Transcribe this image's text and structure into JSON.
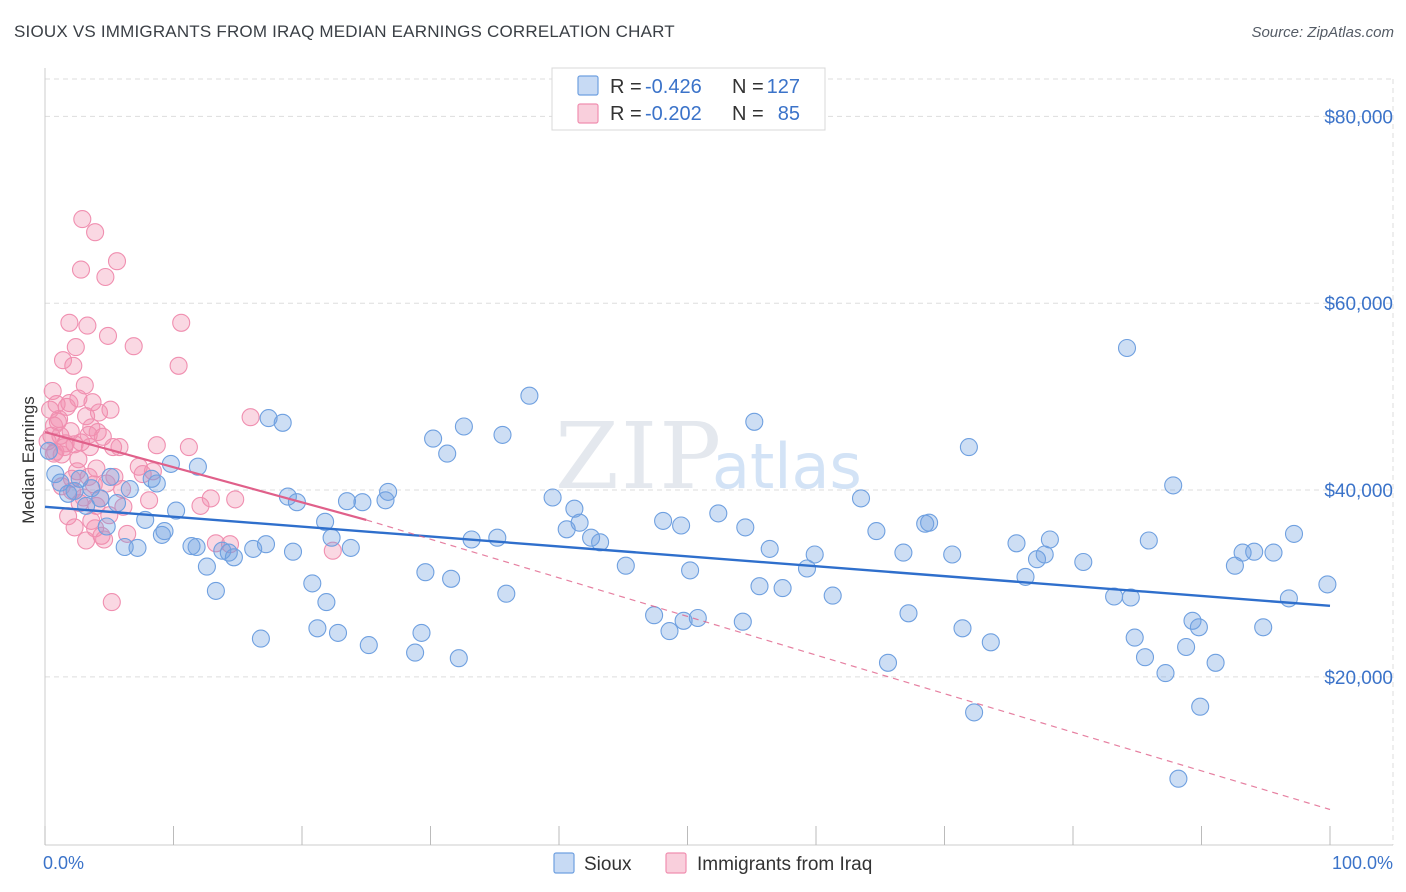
{
  "title": "SIOUX VS IMMIGRANTS FROM IRAQ MEDIAN EARNINGS CORRELATION CHART",
  "source": "Source: ZipAtlas.com",
  "watermark": {
    "part1": "ZIP",
    "part2": "atlas"
  },
  "colors": {
    "sioux": "#6fa0e0",
    "sioux_line": "#2f6fcc",
    "iraq": "#f08fb0",
    "iraq_line": "#e0608a",
    "axis_text": "#3b73c9",
    "grid": "#dddddd"
  },
  "legend": {
    "rows": [
      {
        "r_label": "R =",
        "r_value": "-0.426",
        "n_label": "N =",
        "n_value": "127"
      },
      {
        "r_label": "R =",
        "r_value": "-0.202",
        "n_label": "N =",
        "n_value": "85"
      }
    ]
  },
  "bottom_legend": [
    "Sioux",
    "Immigrants from Iraq"
  ],
  "chart_data": {
    "type": "scatter",
    "title": "SIOUX VS IMMIGRANTS FROM IRAQ MEDIAN EARNINGS CORRELATION CHART",
    "xlabel": "",
    "ylabel": "Median Earnings",
    "xlim": [
      0,
      100
    ],
    "ylim": [
      2000,
      84000
    ],
    "x_tick_labels": [
      "0.0%",
      "100.0%"
    ],
    "y_ticks": [
      20000,
      40000,
      60000,
      80000
    ],
    "y_tick_labels": [
      "$20,000",
      "$40,000",
      "$60,000",
      "$80,000"
    ],
    "series": [
      {
        "name": "Sioux",
        "r": -0.426,
        "n": 127,
        "trend": {
          "x": [
            0,
            100
          ],
          "y": [
            38200,
            27600
          ]
        },
        "points": [
          [
            0.3,
            44200
          ],
          [
            1.2,
            40800
          ],
          [
            1.8,
            39600
          ],
          [
            2.3,
            39900
          ],
          [
            2.7,
            41200
          ],
          [
            3.2,
            38300
          ],
          [
            3.6,
            40200
          ],
          [
            4.3,
            39100
          ],
          [
            4.8,
            36100
          ],
          [
            5.1,
            41400
          ],
          [
            5.6,
            38600
          ],
          [
            6.2,
            33900
          ],
          [
            6.6,
            40100
          ],
          [
            7.2,
            33800
          ],
          [
            7.8,
            36800
          ],
          [
            8.3,
            41200
          ],
          [
            8.7,
            40700
          ],
          [
            9.1,
            35200
          ],
          [
            9.3,
            35600
          ],
          [
            9.8,
            42800
          ],
          [
            10.2,
            37800
          ],
          [
            11.4,
            34000
          ],
          [
            11.8,
            33900
          ],
          [
            11.9,
            42500
          ],
          [
            12.6,
            31800
          ],
          [
            13.3,
            29200
          ],
          [
            13.8,
            33500
          ],
          [
            14.3,
            33300
          ],
          [
            14.7,
            32800
          ],
          [
            16.2,
            33700
          ],
          [
            16.8,
            24100
          ],
          [
            17.2,
            34200
          ],
          [
            17.4,
            47700
          ],
          [
            18.5,
            47200
          ],
          [
            18.9,
            39300
          ],
          [
            19.3,
            33400
          ],
          [
            19.6,
            38700
          ],
          [
            20.8,
            30000
          ],
          [
            21.2,
            25200
          ],
          [
            21.9,
            28000
          ],
          [
            21.8,
            36600
          ],
          [
            22.3,
            34900
          ],
          [
            22.8,
            24700
          ],
          [
            23.5,
            38800
          ],
          [
            23.8,
            33800
          ],
          [
            24.7,
            38700
          ],
          [
            25.2,
            23400
          ],
          [
            26.5,
            38900
          ],
          [
            26.7,
            39800
          ],
          [
            28.8,
            22600
          ],
          [
            29.3,
            24700
          ],
          [
            29.6,
            31200
          ],
          [
            30.2,
            45500
          ],
          [
            31.3,
            43900
          ],
          [
            31.6,
            30500
          ],
          [
            32.2,
            22000
          ],
          [
            32.6,
            46800
          ],
          [
            33.2,
            34700
          ],
          [
            35.2,
            34900
          ],
          [
            35.6,
            45900
          ],
          [
            35.9,
            28900
          ],
          [
            37.7,
            50100
          ],
          [
            39.5,
            39200
          ],
          [
            40.6,
            35800
          ],
          [
            41.2,
            38000
          ],
          [
            41.6,
            36500
          ],
          [
            42.5,
            34900
          ],
          [
            43.2,
            34400
          ],
          [
            45.2,
            31900
          ],
          [
            47.4,
            26600
          ],
          [
            48.1,
            36700
          ],
          [
            48.6,
            24900
          ],
          [
            49.5,
            36200
          ],
          [
            49.7,
            26000
          ],
          [
            50.8,
            26300
          ],
          [
            50.2,
            31400
          ],
          [
            52.4,
            37500
          ],
          [
            54.5,
            36000
          ],
          [
            54.3,
            25900
          ],
          [
            55.2,
            47300
          ],
          [
            55.6,
            29700
          ],
          [
            56.4,
            33700
          ],
          [
            57.4,
            29500
          ],
          [
            59.3,
            31600
          ],
          [
            59.9,
            33100
          ],
          [
            61.3,
            28700
          ],
          [
            63.5,
            39100
          ],
          [
            64.7,
            35600
          ],
          [
            65.6,
            21500
          ],
          [
            66.8,
            33300
          ],
          [
            67.2,
            26800
          ],
          [
            68.5,
            36400
          ],
          [
            68.8,
            36500
          ],
          [
            70.6,
            33100
          ],
          [
            71.4,
            25200
          ],
          [
            71.9,
            44600
          ],
          [
            72.3,
            16200
          ],
          [
            73.6,
            23700
          ],
          [
            75.6,
            34300
          ],
          [
            76.3,
            30700
          ],
          [
            77.2,
            32600
          ],
          [
            77.8,
            33100
          ],
          [
            78.2,
            34700
          ],
          [
            80.8,
            32300
          ],
          [
            83.2,
            28600
          ],
          [
            84.2,
            55200
          ],
          [
            84.5,
            28500
          ],
          [
            84.8,
            24200
          ],
          [
            85.6,
            22100
          ],
          [
            85.9,
            34600
          ],
          [
            87.2,
            20400
          ],
          [
            87.8,
            40500
          ],
          [
            88.2,
            9100
          ],
          [
            88.8,
            23200
          ],
          [
            89.3,
            26000
          ],
          [
            89.8,
            25300
          ],
          [
            89.9,
            16800
          ],
          [
            91.1,
            21500
          ],
          [
            92.6,
            31900
          ],
          [
            93.2,
            33300
          ],
          [
            94.1,
            33400
          ],
          [
            94.8,
            25300
          ],
          [
            95.6,
            33300
          ],
          [
            96.8,
            28400
          ],
          [
            97.2,
            35300
          ],
          [
            99.8,
            29900
          ],
          [
            0.8,
            41700
          ]
        ]
      },
      {
        "name": "Immigrants from Iraq",
        "r": -0.202,
        "n": 85,
        "trend_solid": {
          "x": [
            0,
            25
          ],
          "y": [
            46200,
            36800
          ]
        },
        "trend_dashed": {
          "x": [
            25,
            100
          ],
          "y": [
            36800,
            5800
          ]
        },
        "points": [
          [
            0.2,
            45200
          ],
          [
            0.4,
            48600
          ],
          [
            0.6,
            50600
          ],
          [
            0.7,
            46900
          ],
          [
            0.8,
            44100
          ],
          [
            0.9,
            49200
          ],
          [
            1.1,
            47600
          ],
          [
            1.2,
            45800
          ],
          [
            1.3,
            43800
          ],
          [
            1.4,
            53900
          ],
          [
            1.6,
            45000
          ],
          [
            1.7,
            48900
          ],
          [
            1.8,
            37200
          ],
          [
            1.9,
            57900
          ],
          [
            2.0,
            46300
          ],
          [
            2.1,
            39900
          ],
          [
            2.2,
            53300
          ],
          [
            2.3,
            44900
          ],
          [
            2.4,
            55300
          ],
          [
            2.5,
            42000
          ],
          [
            2.6,
            49800
          ],
          [
            2.7,
            38600
          ],
          [
            2.8,
            63600
          ],
          [
            2.9,
            69000
          ],
          [
            3.0,
            39200
          ],
          [
            3.1,
            51200
          ],
          [
            3.2,
            47900
          ],
          [
            3.3,
            57600
          ],
          [
            3.4,
            45900
          ],
          [
            3.5,
            44600
          ],
          [
            3.6,
            36700
          ],
          [
            3.7,
            49400
          ],
          [
            3.8,
            40600
          ],
          [
            3.9,
            67600
          ],
          [
            4.0,
            42300
          ],
          [
            4.1,
            46200
          ],
          [
            4.2,
            48300
          ],
          [
            4.3,
            39100
          ],
          [
            4.4,
            35100
          ],
          [
            4.5,
            45700
          ],
          [
            4.6,
            34700
          ],
          [
            4.7,
            62800
          ],
          [
            4.8,
            40700
          ],
          [
            4.9,
            56500
          ],
          [
            5.0,
            37300
          ],
          [
            5.1,
            48600
          ],
          [
            5.2,
            28000
          ],
          [
            5.3,
            44600
          ],
          [
            5.4,
            41400
          ],
          [
            5.6,
            64500
          ],
          [
            5.8,
            44600
          ],
          [
            6.1,
            38200
          ],
          [
            6.4,
            35300
          ],
          [
            6.9,
            55400
          ],
          [
            7.3,
            42500
          ],
          [
            7.6,
            41700
          ],
          [
            8.1,
            38900
          ],
          [
            8.4,
            42000
          ],
          [
            8.7,
            44800
          ],
          [
            10.4,
            53300
          ],
          [
            10.6,
            57900
          ],
          [
            11.2,
            44600
          ],
          [
            12.1,
            38300
          ],
          [
            12.9,
            39100
          ],
          [
            13.3,
            34300
          ],
          [
            14.4,
            34200
          ],
          [
            14.8,
            39000
          ],
          [
            16.0,
            47800
          ],
          [
            22.4,
            33500
          ],
          [
            1.5,
            44600
          ],
          [
            1.3,
            40400
          ],
          [
            2.3,
            36000
          ],
          [
            2.8,
            45100
          ],
          [
            3.4,
            41400
          ],
          [
            3.9,
            35900
          ],
          [
            1.0,
            47300
          ],
          [
            0.7,
            43900
          ],
          [
            2.1,
            41200
          ],
          [
            4.0,
            38300
          ],
          [
            3.2,
            34600
          ],
          [
            6.0,
            40100
          ],
          [
            0.5,
            45800
          ],
          [
            1.9,
            49300
          ],
          [
            3.6,
            46700
          ],
          [
            2.6,
            43300
          ]
        ]
      }
    ]
  }
}
